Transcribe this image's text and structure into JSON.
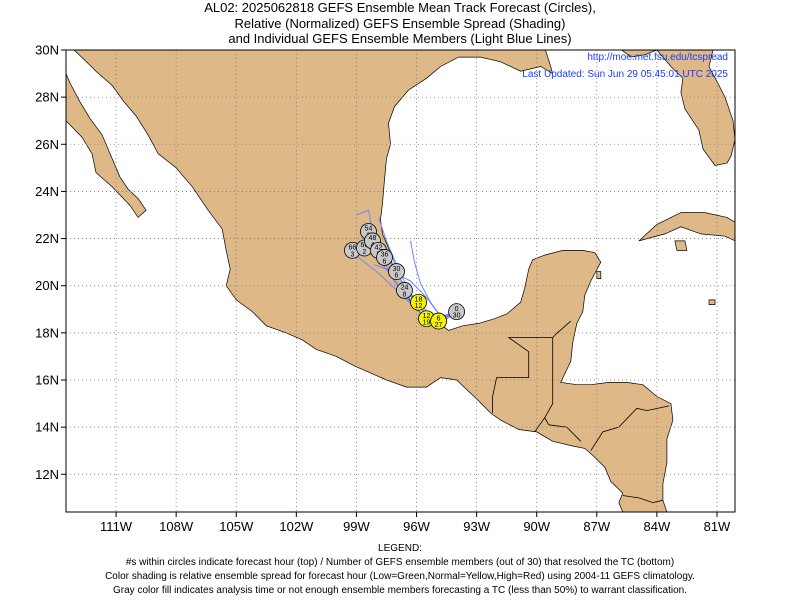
{
  "title": {
    "line1": "AL02: 2025062818 GEFS Ensemble Mean Track Forecast (Circles),",
    "line2": "Relative (Normalized) GEFS Ensemble Spread (Shading)",
    "line3": "and Individual GEFS Ensemble Members (Light Blue Lines)"
  },
  "credits": {
    "url": "http://moe.met.fsu.edu/tcspread",
    "updated": "Last Updated: Sun Jun 29 05:45:01 UTC 2025"
  },
  "axes": {
    "lon_labels": [
      "111W",
      "108W",
      "105W",
      "102W",
      "99W",
      "96W",
      "93W",
      "90W",
      "87W",
      "84W",
      "81W"
    ],
    "lon_values": [
      -111,
      -108,
      -105,
      -102,
      -99,
      -96,
      -93,
      -90,
      -87,
      -84,
      -81
    ],
    "lat_labels": [
      "12N",
      "14N",
      "16N",
      "18N",
      "20N",
      "22N",
      "24N",
      "26N",
      "28N",
      "30N"
    ],
    "lat_values": [
      12,
      14,
      16,
      18,
      20,
      22,
      24,
      26,
      28,
      30
    ],
    "lon_range": [
      -113.5,
      -80.1
    ],
    "lat_range": [
      10.4,
      30.0
    ]
  },
  "colors": {
    "land": "#deb887",
    "ocean": "#ffffff",
    "member_tracks": "#6f86ff",
    "circle_gray": "#c8c8c8",
    "circle_yellow": "#f5f500",
    "circle_green": "#2ecc40",
    "circle_red": "#ff3030"
  },
  "forecast_points": [
    {
      "hour": "0",
      "members": "30",
      "lon": -94.0,
      "lat": 18.9,
      "color": "gray"
    },
    {
      "hour": "6",
      "members": "27",
      "lon": -94.9,
      "lat": 18.5,
      "color": "yellow"
    },
    {
      "hour": "12",
      "members": "19",
      "lon": -95.5,
      "lat": 18.6,
      "color": "yellow"
    },
    {
      "hour": "18",
      "members": "12",
      "lon": -95.9,
      "lat": 19.3,
      "color": "yellow"
    },
    {
      "hour": "24",
      "members": "8",
      "lon": -96.6,
      "lat": 19.8,
      "color": "gray"
    },
    {
      "hour": "30",
      "members": "6",
      "lon": -97.0,
      "lat": 20.6,
      "color": "gray"
    },
    {
      "hour": "36",
      "members": "6",
      "lon": -97.6,
      "lat": 21.2,
      "color": "gray"
    },
    {
      "hour": "42",
      "members": "5",
      "lon": -97.9,
      "lat": 21.5,
      "color": "gray"
    },
    {
      "hour": "48",
      "members": "4",
      "lon": -98.2,
      "lat": 21.9,
      "color": "gray"
    },
    {
      "hour": "54",
      "members": "3",
      "lon": -98.4,
      "lat": 22.3,
      "color": "gray"
    },
    {
      "hour": "60",
      "members": "2",
      "lon": -98.6,
      "lat": 21.6,
      "color": "gray"
    },
    {
      "hour": "66",
      "members": "3",
      "lon": -99.2,
      "lat": 21.5,
      "color": "gray"
    }
  ],
  "member_tracks": [
    [
      [
        -94.0,
        18.9
      ],
      [
        -94.9,
        18.6
      ],
      [
        -95.6,
        18.9
      ],
      [
        -96.4,
        19.8
      ],
      [
        -97.0,
        20.9
      ],
      [
        -97.5,
        21.9
      ],
      [
        -97.9,
        22.9
      ]
    ],
    [
      [
        -94.0,
        18.9
      ],
      [
        -95.0,
        18.5
      ],
      [
        -95.8,
        19.2
      ],
      [
        -96.8,
        19.9
      ],
      [
        -97.6,
        20.8
      ],
      [
        -98.2,
        21.7
      ],
      [
        -98.7,
        22.6
      ]
    ],
    [
      [
        -94.0,
        18.9
      ],
      [
        -94.8,
        18.4
      ],
      [
        -95.5,
        18.7
      ],
      [
        -96.2,
        19.5
      ],
      [
        -96.9,
        20.4
      ],
      [
        -97.3,
        21.5
      ]
    ],
    [
      [
        -94.0,
        18.9
      ],
      [
        -94.7,
        18.6
      ],
      [
        -95.3,
        19.3
      ],
      [
        -95.8,
        20.1
      ],
      [
        -96.1,
        21.0
      ],
      [
        -96.3,
        21.9
      ]
    ],
    [
      [
        -94.0,
        18.9
      ],
      [
        -94.9,
        18.5
      ],
      [
        -95.4,
        18.4
      ],
      [
        -96.0,
        18.6
      ]
    ],
    [
      [
        -94.0,
        18.9
      ],
      [
        -95.1,
        18.5
      ],
      [
        -96.0,
        19.0
      ],
      [
        -97.1,
        19.9
      ],
      [
        -98.0,
        20.6
      ],
      [
        -98.9,
        21.2
      ],
      [
        -99.6,
        21.5
      ]
    ],
    [
      [
        -94.0,
        18.9
      ],
      [
        -94.8,
        18.7
      ],
      [
        -95.5,
        19.5
      ],
      [
        -96.3,
        20.2
      ],
      [
        -97.2,
        20.6
      ],
      [
        -98.1,
        20.9
      ]
    ],
    [
      [
        -94.0,
        18.9
      ],
      [
        -95.0,
        18.4
      ],
      [
        -95.9,
        18.9
      ],
      [
        -96.6,
        19.6
      ],
      [
        -97.2,
        20.3
      ],
      [
        -97.7,
        21.2
      ],
      [
        -98.1,
        21.9
      ],
      [
        -98.4,
        23.2
      ],
      [
        -99.0,
        23.0
      ]
    ]
  ],
  "legend": {
    "heading": "LEGEND:",
    "line1": "#s within circles indicate forecast hour (top) / Number of GEFS ensemble members (out of 30) that resolved the TC (bottom)",
    "line2": "Color shading is relative ensemble spread for forecast hour (Low=Green,Normal=Yellow,High=Red) using 2004-11 GEFS climatology.",
    "line3": "Gray color fill indicates analysis time or not enough ensemble members forecasting a TC (less than 50%) to warrant classification."
  }
}
